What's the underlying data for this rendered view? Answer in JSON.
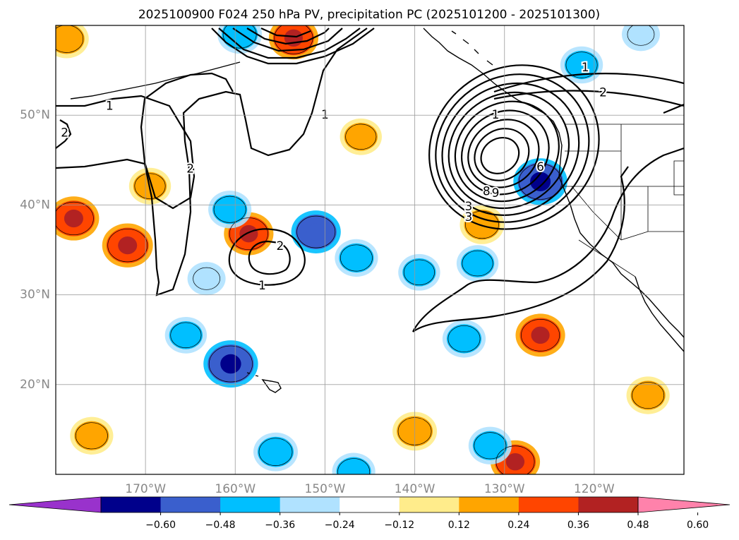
{
  "chart_data": {
    "type": "map",
    "title": "2025100900 F024 250 hPa PV, precipitation PC (2025101200 - 2025101300)",
    "projection": "plate-carree",
    "lon_range": [
      -180,
      -110
    ],
    "lat_range": [
      10,
      60
    ],
    "gridlines": true,
    "lat_ticks": [
      {
        "value": 20,
        "label": "20°N"
      },
      {
        "value": 30,
        "label": "30°N"
      },
      {
        "value": 40,
        "label": "40°N"
      },
      {
        "value": 50,
        "label": "50°N"
      }
    ],
    "lon_ticks": [
      {
        "value": -170,
        "label": "170°W"
      },
      {
        "value": -160,
        "label": "160°W"
      },
      {
        "value": -150,
        "label": "150°W"
      },
      {
        "value": -140,
        "label": "140°W"
      },
      {
        "value": -130,
        "label": "130°W"
      },
      {
        "value": -120,
        "label": "120°W"
      }
    ],
    "colorbar": {
      "extend": "both",
      "boundaries": [
        -0.72,
        -0.6,
        -0.48,
        -0.36,
        -0.24,
        -0.12,
        0.12,
        0.24,
        0.36,
        0.48,
        0.6,
        0.72
      ],
      "colors": [
        "#9932cc",
        "#00008b",
        "#3a5fcd",
        "#00bfff",
        "#b0e2ff",
        "#ffffff",
        "#ffec8b",
        "#ffa500",
        "#ff4500",
        "#b22222",
        "#ff82ab"
      ],
      "tick_labels": [
        "−0.60",
        "−0.48",
        "−0.36",
        "−0.24",
        "−0.12",
        "0.12",
        "0.24",
        "0.36",
        "0.48",
        "0.60"
      ]
    },
    "pv_contour_labels": [
      {
        "text": "1",
        "lon": -174,
        "lat": 51
      },
      {
        "text": "2",
        "lon": -179,
        "lat": 48
      },
      {
        "text": "2",
        "lon": -165,
        "lat": 44
      },
      {
        "text": "1",
        "lon": -150,
        "lat": 50
      },
      {
        "text": "2",
        "lon": -155,
        "lat": 35.4
      },
      {
        "text": "1",
        "lon": -157,
        "lat": 31
      },
      {
        "text": "1",
        "lon": -121,
        "lat": 55.3
      },
      {
        "text": "2",
        "lon": -119,
        "lat": 52.5
      },
      {
        "text": "8",
        "lon": -132,
        "lat": 41.5
      },
      {
        "text": "9",
        "lon": -131,
        "lat": 41.3
      },
      {
        "text": "3",
        "lon": -134,
        "lat": 39.8
      },
      {
        "text": "3",
        "lon": -134,
        "lat": 38.6
      },
      {
        "text": "6",
        "lon": -126,
        "lat": 44.2
      },
      {
        "text": "1",
        "lon": -131,
        "lat": 50
      }
    ],
    "precip_anomalies": [
      {
        "lon": -178,
        "lat": 38.5,
        "value": 0.4
      },
      {
        "lon": -172,
        "lat": 35.5,
        "value": 0.4
      },
      {
        "lon": -158.5,
        "lat": 36.8,
        "value": 0.38
      },
      {
        "lon": -132.5,
        "lat": 37.8,
        "value": 0.3
      },
      {
        "lon": -126,
        "lat": 25.5,
        "value": 0.38
      },
      {
        "lon": -176,
        "lat": 14.3,
        "value": 0.28
      },
      {
        "lon": -140,
        "lat": 14.8,
        "value": 0.3
      },
      {
        "lon": -128.8,
        "lat": 11.4,
        "value": 0.38
      },
      {
        "lon": -114,
        "lat": 18.8,
        "value": 0.28
      },
      {
        "lon": -146,
        "lat": 47.6,
        "value": 0.26
      },
      {
        "lon": -169.5,
        "lat": 42.1,
        "value": 0.26
      },
      {
        "lon": -178.8,
        "lat": 58.5,
        "value": 0.3
      },
      {
        "lon": -153.5,
        "lat": 58.6,
        "value": 0.38
      },
      {
        "lon": -126,
        "lat": 42.6,
        "value": -0.45
      },
      {
        "lon": -159.5,
        "lat": 59,
        "value": -0.3
      },
      {
        "lon": -160.5,
        "lat": 22.3,
        "value": -0.46
      },
      {
        "lon": -151,
        "lat": 37,
        "value": -0.38
      },
      {
        "lon": -160.6,
        "lat": 39.5,
        "value": -0.28
      },
      {
        "lon": -146.5,
        "lat": 34.1,
        "value": -0.28
      },
      {
        "lon": -134.5,
        "lat": 25.1,
        "value": -0.28
      },
      {
        "lon": -163.2,
        "lat": 31.8,
        "value": -0.2
      },
      {
        "lon": -131.6,
        "lat": 13.2,
        "value": -0.28
      },
      {
        "lon": -155.5,
        "lat": 12.5,
        "value": -0.3
      },
      {
        "lon": -139.5,
        "lat": 32.5,
        "value": -0.26
      },
      {
        "lon": -133,
        "lat": 33.5,
        "value": -0.26
      },
      {
        "lon": -121.4,
        "lat": 55.6,
        "value": -0.27
      },
      {
        "lon": -114.8,
        "lat": 59,
        "value": -0.2
      },
      {
        "lon": -165.5,
        "lat": 25.5,
        "value": -0.26
      },
      {
        "lon": -146.8,
        "lat": 10.3,
        "value": -0.28
      }
    ]
  }
}
